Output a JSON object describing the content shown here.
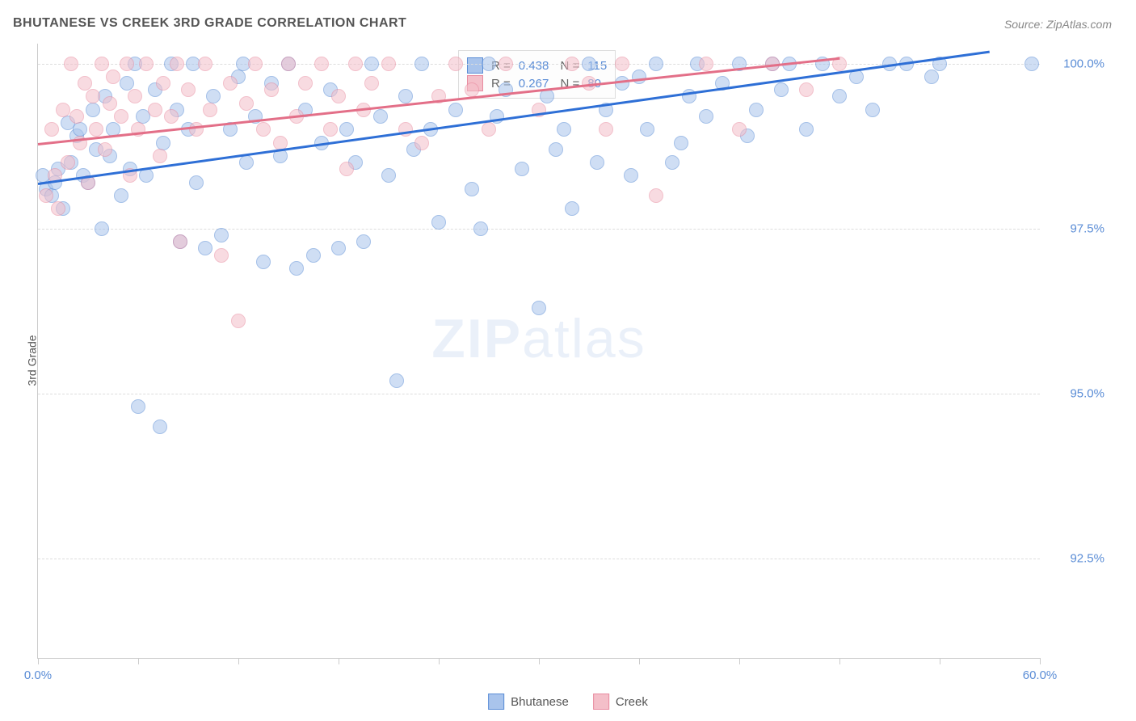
{
  "title": "BHUTANESE VS CREEK 3RD GRADE CORRELATION CHART",
  "source": "Source: ZipAtlas.com",
  "ylabel": "3rd Grade",
  "watermark_bold": "ZIP",
  "watermark_light": "atlas",
  "chart": {
    "type": "scatter",
    "xlim": [
      0,
      60
    ],
    "ylim": [
      91,
      100.3
    ],
    "xtick_positions": [
      0,
      6,
      12,
      18,
      24,
      30,
      36,
      42,
      48,
      54,
      60
    ],
    "xtick_labels": {
      "0": "0.0%",
      "60": "60.0%"
    },
    "ytick_positions": [
      92.5,
      95.0,
      97.5,
      100.0
    ],
    "ytick_labels": [
      "92.5%",
      "95.0%",
      "97.5%",
      "100.0%"
    ],
    "grid_color": "#dddddd",
    "axis_color": "#cccccc",
    "background_color": "#ffffff",
    "point_radius": 8,
    "point_opacity": 0.55
  },
  "series": [
    {
      "name": "Bhutanese",
      "color_fill": "#a9c4ec",
      "color_stroke": "#5b8dd6",
      "trend_color": "#2e6fd6",
      "r": "0.438",
      "n": "115",
      "trend": {
        "x1": 0,
        "y1": 98.2,
        "x2": 57,
        "y2": 100.2
      },
      "points": [
        [
          0.3,
          98.3
        ],
        [
          0.5,
          98.1
        ],
        [
          0.8,
          98.0
        ],
        [
          1.0,
          98.2
        ],
        [
          1.2,
          98.4
        ],
        [
          1.5,
          97.8
        ],
        [
          1.8,
          99.1
        ],
        [
          2.0,
          98.5
        ],
        [
          2.3,
          98.9
        ],
        [
          2.5,
          99.0
        ],
        [
          2.7,
          98.3
        ],
        [
          3.0,
          98.2
        ],
        [
          3.3,
          99.3
        ],
        [
          3.5,
          98.7
        ],
        [
          3.8,
          97.5
        ],
        [
          4.0,
          99.5
        ],
        [
          4.3,
          98.6
        ],
        [
          4.5,
          99.0
        ],
        [
          5.0,
          98.0
        ],
        [
          5.3,
          99.7
        ],
        [
          5.5,
          98.4
        ],
        [
          5.8,
          100.0
        ],
        [
          6.0,
          94.8
        ],
        [
          6.3,
          99.2
        ],
        [
          6.5,
          98.3
        ],
        [
          7.0,
          99.6
        ],
        [
          7.3,
          94.5
        ],
        [
          7.5,
          98.8
        ],
        [
          8.0,
          100.0
        ],
        [
          8.3,
          99.3
        ],
        [
          8.5,
          97.3
        ],
        [
          9.0,
          99.0
        ],
        [
          9.3,
          100.0
        ],
        [
          9.5,
          98.2
        ],
        [
          10.0,
          97.2
        ],
        [
          10.5,
          99.5
        ],
        [
          11.0,
          97.4
        ],
        [
          11.5,
          99.0
        ],
        [
          12.0,
          99.8
        ],
        [
          12.3,
          100.0
        ],
        [
          12.5,
          98.5
        ],
        [
          13.0,
          99.2
        ],
        [
          13.5,
          97.0
        ],
        [
          14.0,
          99.7
        ],
        [
          14.5,
          98.6
        ],
        [
          15.0,
          100.0
        ],
        [
          15.5,
          96.9
        ],
        [
          16.0,
          99.3
        ],
        [
          16.5,
          97.1
        ],
        [
          17.0,
          98.8
        ],
        [
          17.5,
          99.6
        ],
        [
          18.0,
          97.2
        ],
        [
          18.5,
          99.0
        ],
        [
          19.0,
          98.5
        ],
        [
          19.5,
          97.3
        ],
        [
          20.0,
          100.0
        ],
        [
          20.5,
          99.2
        ],
        [
          21.0,
          98.3
        ],
        [
          21.5,
          95.2
        ],
        [
          22.0,
          99.5
        ],
        [
          22.5,
          98.7
        ],
        [
          23.0,
          100.0
        ],
        [
          23.5,
          99.0
        ],
        [
          24.0,
          97.6
        ],
        [
          25.0,
          99.3
        ],
        [
          26.0,
          98.1
        ],
        [
          26.5,
          97.5
        ],
        [
          27.0,
          100.0
        ],
        [
          27.5,
          99.2
        ],
        [
          28.0,
          99.6
        ],
        [
          29.0,
          98.4
        ],
        [
          30.0,
          96.3
        ],
        [
          30.5,
          99.5
        ],
        [
          31.0,
          98.7
        ],
        [
          31.5,
          99.0
        ],
        [
          32.0,
          97.8
        ],
        [
          33.0,
          100.0
        ],
        [
          33.5,
          98.5
        ],
        [
          34.0,
          99.3
        ],
        [
          35.0,
          99.7
        ],
        [
          35.5,
          98.3
        ],
        [
          36.0,
          99.8
        ],
        [
          36.5,
          99.0
        ],
        [
          37.0,
          100.0
        ],
        [
          38.0,
          98.5
        ],
        [
          38.5,
          98.8
        ],
        [
          39.0,
          99.5
        ],
        [
          39.5,
          100.0
        ],
        [
          40.0,
          99.2
        ],
        [
          41.0,
          99.7
        ],
        [
          42.0,
          100.0
        ],
        [
          42.5,
          98.9
        ],
        [
          43.0,
          99.3
        ],
        [
          44.0,
          100.0
        ],
        [
          44.5,
          99.6
        ],
        [
          45.0,
          100.0
        ],
        [
          46.0,
          99.0
        ],
        [
          47.0,
          100.0
        ],
        [
          48.0,
          99.5
        ],
        [
          49.0,
          99.8
        ],
        [
          50.0,
          99.3
        ],
        [
          51.0,
          100.0
        ],
        [
          52.0,
          100.0
        ],
        [
          53.5,
          99.8
        ],
        [
          54.0,
          100.0
        ],
        [
          59.5,
          100.0
        ]
      ]
    },
    {
      "name": "Creek",
      "color_fill": "#f4bfc9",
      "color_stroke": "#e88ca0",
      "trend_color": "#e36f88",
      "r": "0.267",
      "n": "80",
      "trend": {
        "x1": 0,
        "y1": 98.8,
        "x2": 48,
        "y2": 100.1
      },
      "points": [
        [
          0.5,
          98.0
        ],
        [
          0.8,
          99.0
        ],
        [
          1.0,
          98.3
        ],
        [
          1.2,
          97.8
        ],
        [
          1.5,
          99.3
        ],
        [
          1.8,
          98.5
        ],
        [
          2.0,
          100.0
        ],
        [
          2.3,
          99.2
        ],
        [
          2.5,
          98.8
        ],
        [
          2.8,
          99.7
        ],
        [
          3.0,
          98.2
        ],
        [
          3.3,
          99.5
        ],
        [
          3.5,
          99.0
        ],
        [
          3.8,
          100.0
        ],
        [
          4.0,
          98.7
        ],
        [
          4.3,
          99.4
        ],
        [
          4.5,
          99.8
        ],
        [
          5.0,
          99.2
        ],
        [
          5.3,
          100.0
        ],
        [
          5.5,
          98.3
        ],
        [
          5.8,
          99.5
        ],
        [
          6.0,
          99.0
        ],
        [
          6.5,
          100.0
        ],
        [
          7.0,
          99.3
        ],
        [
          7.3,
          98.6
        ],
        [
          7.5,
          99.7
        ],
        [
          8.0,
          99.2
        ],
        [
          8.3,
          100.0
        ],
        [
          8.5,
          97.3
        ],
        [
          9.0,
          99.6
        ],
        [
          9.5,
          99.0
        ],
        [
          10.0,
          100.0
        ],
        [
          10.3,
          99.3
        ],
        [
          11.0,
          97.1
        ],
        [
          11.5,
          99.7
        ],
        [
          12.0,
          96.1
        ],
        [
          12.5,
          99.4
        ],
        [
          13.0,
          100.0
        ],
        [
          13.5,
          99.0
        ],
        [
          14.0,
          99.6
        ],
        [
          14.5,
          98.8
        ],
        [
          15.0,
          100.0
        ],
        [
          15.5,
          99.2
        ],
        [
          16.0,
          99.7
        ],
        [
          17.0,
          100.0
        ],
        [
          17.5,
          99.0
        ],
        [
          18.0,
          99.5
        ],
        [
          18.5,
          98.4
        ],
        [
          19.0,
          100.0
        ],
        [
          19.5,
          99.3
        ],
        [
          20.0,
          99.7
        ],
        [
          21.0,
          100.0
        ],
        [
          22.0,
          99.0
        ],
        [
          23.0,
          98.8
        ],
        [
          24.0,
          99.5
        ],
        [
          25.0,
          100.0
        ],
        [
          26.0,
          99.6
        ],
        [
          27.0,
          99.0
        ],
        [
          28.0,
          100.0
        ],
        [
          30.0,
          99.3
        ],
        [
          32.0,
          100.0
        ],
        [
          33.0,
          99.7
        ],
        [
          34.0,
          99.0
        ],
        [
          35.0,
          100.0
        ],
        [
          37.0,
          98.0
        ],
        [
          40.0,
          100.0
        ],
        [
          42.0,
          99.0
        ],
        [
          44.0,
          100.0
        ],
        [
          46.0,
          99.6
        ],
        [
          48.0,
          100.0
        ]
      ]
    }
  ],
  "legend": [
    {
      "label": "Bhutanese",
      "fill": "#a9c4ec",
      "stroke": "#5b8dd6"
    },
    {
      "label": "Creek",
      "fill": "#f4bfc9",
      "stroke": "#e88ca0"
    }
  ]
}
